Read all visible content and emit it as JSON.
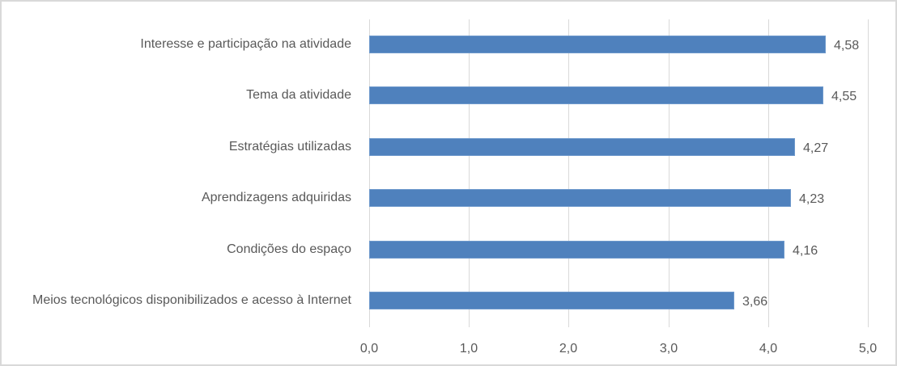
{
  "chart_data": {
    "type": "bar",
    "orientation": "horizontal",
    "title": "",
    "xlabel": "",
    "ylabel": "",
    "categories": [
      "Interesse e participação na atividade",
      "Tema da atividade",
      "Estratégias utilizadas",
      "Aprendizagens adquiridas",
      "Condições do espaço",
      "Meios tecnológicos disponibilizados e acesso à Internet"
    ],
    "values": [
      4.58,
      4.55,
      4.27,
      4.23,
      4.16,
      3.66
    ],
    "value_labels": [
      "4,58",
      "4,55",
      "4,27",
      "4,23",
      "4,16",
      "3,66"
    ],
    "xlim": [
      0,
      5
    ],
    "x_ticks": [
      "0,0",
      "1,0",
      "2,0",
      "3,0",
      "4,0",
      "5,0"
    ],
    "grid": "vertical",
    "legend": "none",
    "bar_color": "#4f81bd"
  }
}
